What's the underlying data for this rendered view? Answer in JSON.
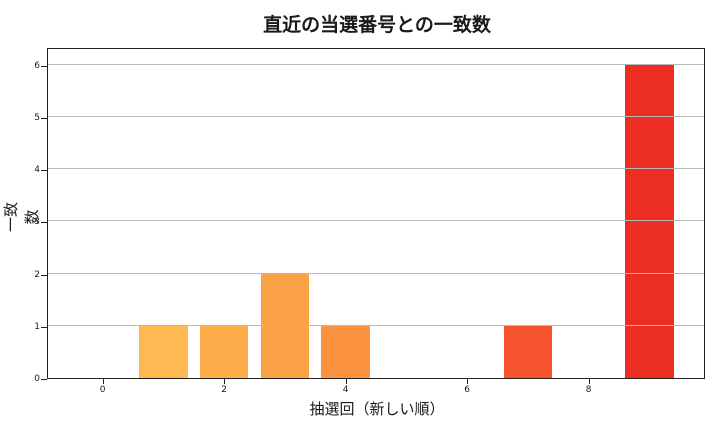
{
  "chart_data": {
    "type": "bar",
    "title": "直近の当選番号との一致数",
    "xlabel": "抽選回（新しい順）",
    "ylabel": "一致数",
    "x": [
      0,
      1,
      2,
      3,
      4,
      5,
      6,
      7,
      8,
      9
    ],
    "values": [
      0,
      1,
      1,
      2,
      1,
      0,
      0,
      1,
      0,
      6
    ],
    "colors": [
      "#ffc55a",
      "#feb854",
      "#fdad4c",
      "#fca246",
      "#fb923f",
      "#fa7d3a",
      "#f86834",
      "#f6542e",
      "#f23f28",
      "#ec2e22"
    ],
    "xticks": [
      0,
      2,
      4,
      6,
      8
    ],
    "yticks": [
      0,
      1,
      2,
      3,
      4,
      5,
      6
    ],
    "xlim": [
      -0.9,
      9.9
    ],
    "ylim": [
      0,
      6.3
    ],
    "grid": {
      "axis": "y",
      "color": "#b8b8b8"
    },
    "legend": null
  }
}
